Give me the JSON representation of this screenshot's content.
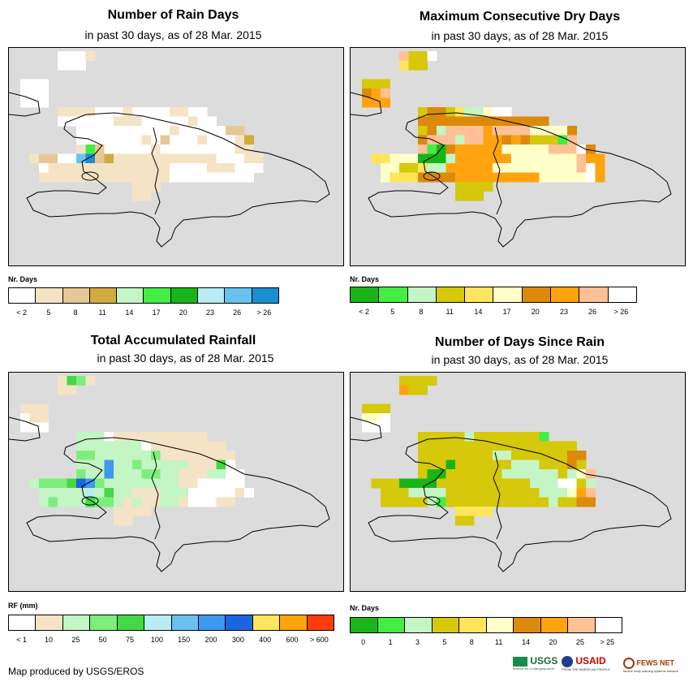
{
  "credit": "Map produced by USGS/EROS",
  "logos": {
    "usgs": "USGS",
    "usgs_tag": "science for a changing world",
    "usaid": "USAID",
    "usaid_tag": "FROM THE AMERICAN PEOPLE",
    "fews": "FEWS NET",
    "fews_tag": "famine early warning systems network"
  },
  "panels": [
    {
      "title": "Number of Rain Days",
      "subtitle": "in past 30 days, as of 28 Mar. 2015",
      "legend_title": "Nr. Days",
      "legend_colors": [
        "#ffffff",
        "#f5e3c6",
        "#e5c896",
        "#d2aa3e",
        "#c4f5c4",
        "#44ec44",
        "#19b419",
        "#b9ecf4",
        "#69c1ef",
        "#1b8ed2"
      ],
      "legend_labels": [
        "< 2",
        "5",
        "8",
        "11",
        "14",
        "17",
        "20",
        "23",
        "26",
        "> 26"
      ],
      "palette": {
        "b": "#ffffff",
        "t": "#f5e3c6",
        "d": "#e5c896",
        "g": "#d2aa3e",
        "l": "#c4f5c4",
        "c": "#44ec44",
        "s": "#69c1ef",
        "u": "#1b8ed2"
      }
    },
    {
      "title": "Maximum Consecutive Dry Days",
      "subtitle": "in past 30 days, as of 28 Mar. 2015",
      "legend_title": "Nr. Days",
      "legend_colors": [
        "#19b419",
        "#44ec44",
        "#c4f5c4",
        "#d6c80a",
        "#ffe55c",
        "#ffffc9",
        "#dc8a0c",
        "#ffa40f",
        "#ffc096",
        "#ffffff"
      ],
      "legend_labels": [
        "< 2",
        "5",
        "8",
        "11",
        "14",
        "17",
        "20",
        "23",
        "26",
        "> 26"
      ],
      "palette": {
        "b": "#ffffff",
        "c": "#44ec44",
        "l": "#c4f5c4",
        "y": "#d6c80a",
        "p": "#ffe55c",
        "w": "#ffffc9",
        "o": "#dc8a0c",
        "a": "#ffa40f",
        "k": "#ffc096",
        "s": "#19b419"
      }
    },
    {
      "title": "Total Accumulated Rainfall",
      "subtitle": "in past 30 days, as of 28 Mar. 2015",
      "legend_title": "RF (mm)",
      "legend_colors": [
        "#ffffff",
        "#f5e3c6",
        "#c4f5c4",
        "#7dee7d",
        "#44d844",
        "#b9ecf4",
        "#69c1ef",
        "#3d98ef",
        "#1b66e0",
        "#ffe55c",
        "#ffa40f",
        "#ff3c0a"
      ],
      "legend_labels": [
        "< 1",
        "10",
        "25",
        "50",
        "75",
        "100",
        "150",
        "200",
        "300",
        "400",
        "600",
        "> 600"
      ],
      "palette": {
        "b": "#ffffff",
        "t": "#f5e3c6",
        "l": "#c4f5c4",
        "m": "#7dee7d",
        "c": "#44d844",
        "q": "#b9ecf4",
        "s": "#69c1ef",
        "n": "#3d98ef",
        "u": "#1b66e0"
      }
    },
    {
      "title": "Number of Days Since Rain",
      "subtitle": "in past 30 days, as of 28 Mar. 2015",
      "legend_title": "Nr. Days",
      "legend_colors": [
        "#19b419",
        "#44ec44",
        "#c4f5c4",
        "#d6c80a",
        "#ffe55c",
        "#ffffc9",
        "#dc8a0c",
        "#ffa40f",
        "#ffc096",
        "#ffffff"
      ],
      "legend_labels": [
        "0",
        "1",
        "3",
        "5",
        "8",
        "11",
        "14",
        "20",
        "25",
        "> 25"
      ],
      "palette": {
        "b": "#ffffff",
        "s": "#19b419",
        "c": "#44ec44",
        "l": "#c4f5c4",
        "y": "#d6c80a",
        "p": "#ffe55c",
        "w": "#ffffc9",
        "o": "#dc8a0c",
        "a": "#ffa40f",
        "k": "#ffc096"
      }
    }
  ]
}
